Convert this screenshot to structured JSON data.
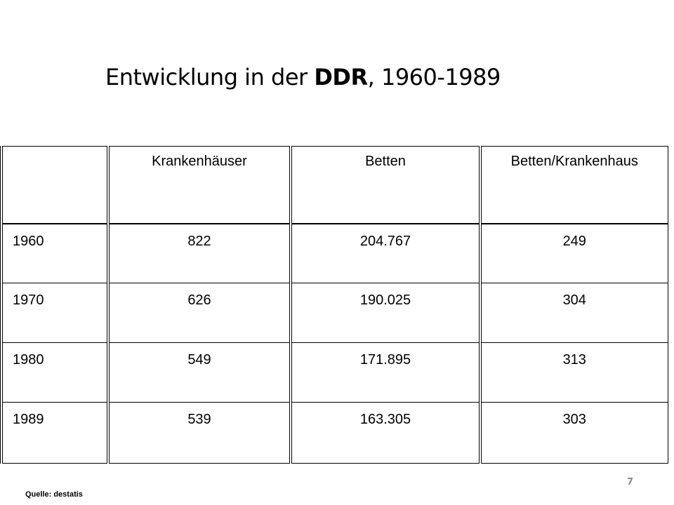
{
  "title": {
    "prefix": "Entwicklung in der ",
    "bold": "DDR",
    "suffix": ", 1960-1989"
  },
  "table": {
    "headers": [
      "",
      "Krankenhäuser",
      "Betten",
      "Betten/Krankenhaus"
    ],
    "rows": [
      [
        "1960",
        "822",
        "204.767",
        "249"
      ],
      [
        "1970",
        "626",
        "190.025",
        "304"
      ],
      [
        "1980",
        "549",
        "171.895",
        "313"
      ],
      [
        "1989",
        "539",
        "163.305",
        "303"
      ]
    ]
  },
  "source": "Quelle: destatis",
  "page_number": "7"
}
